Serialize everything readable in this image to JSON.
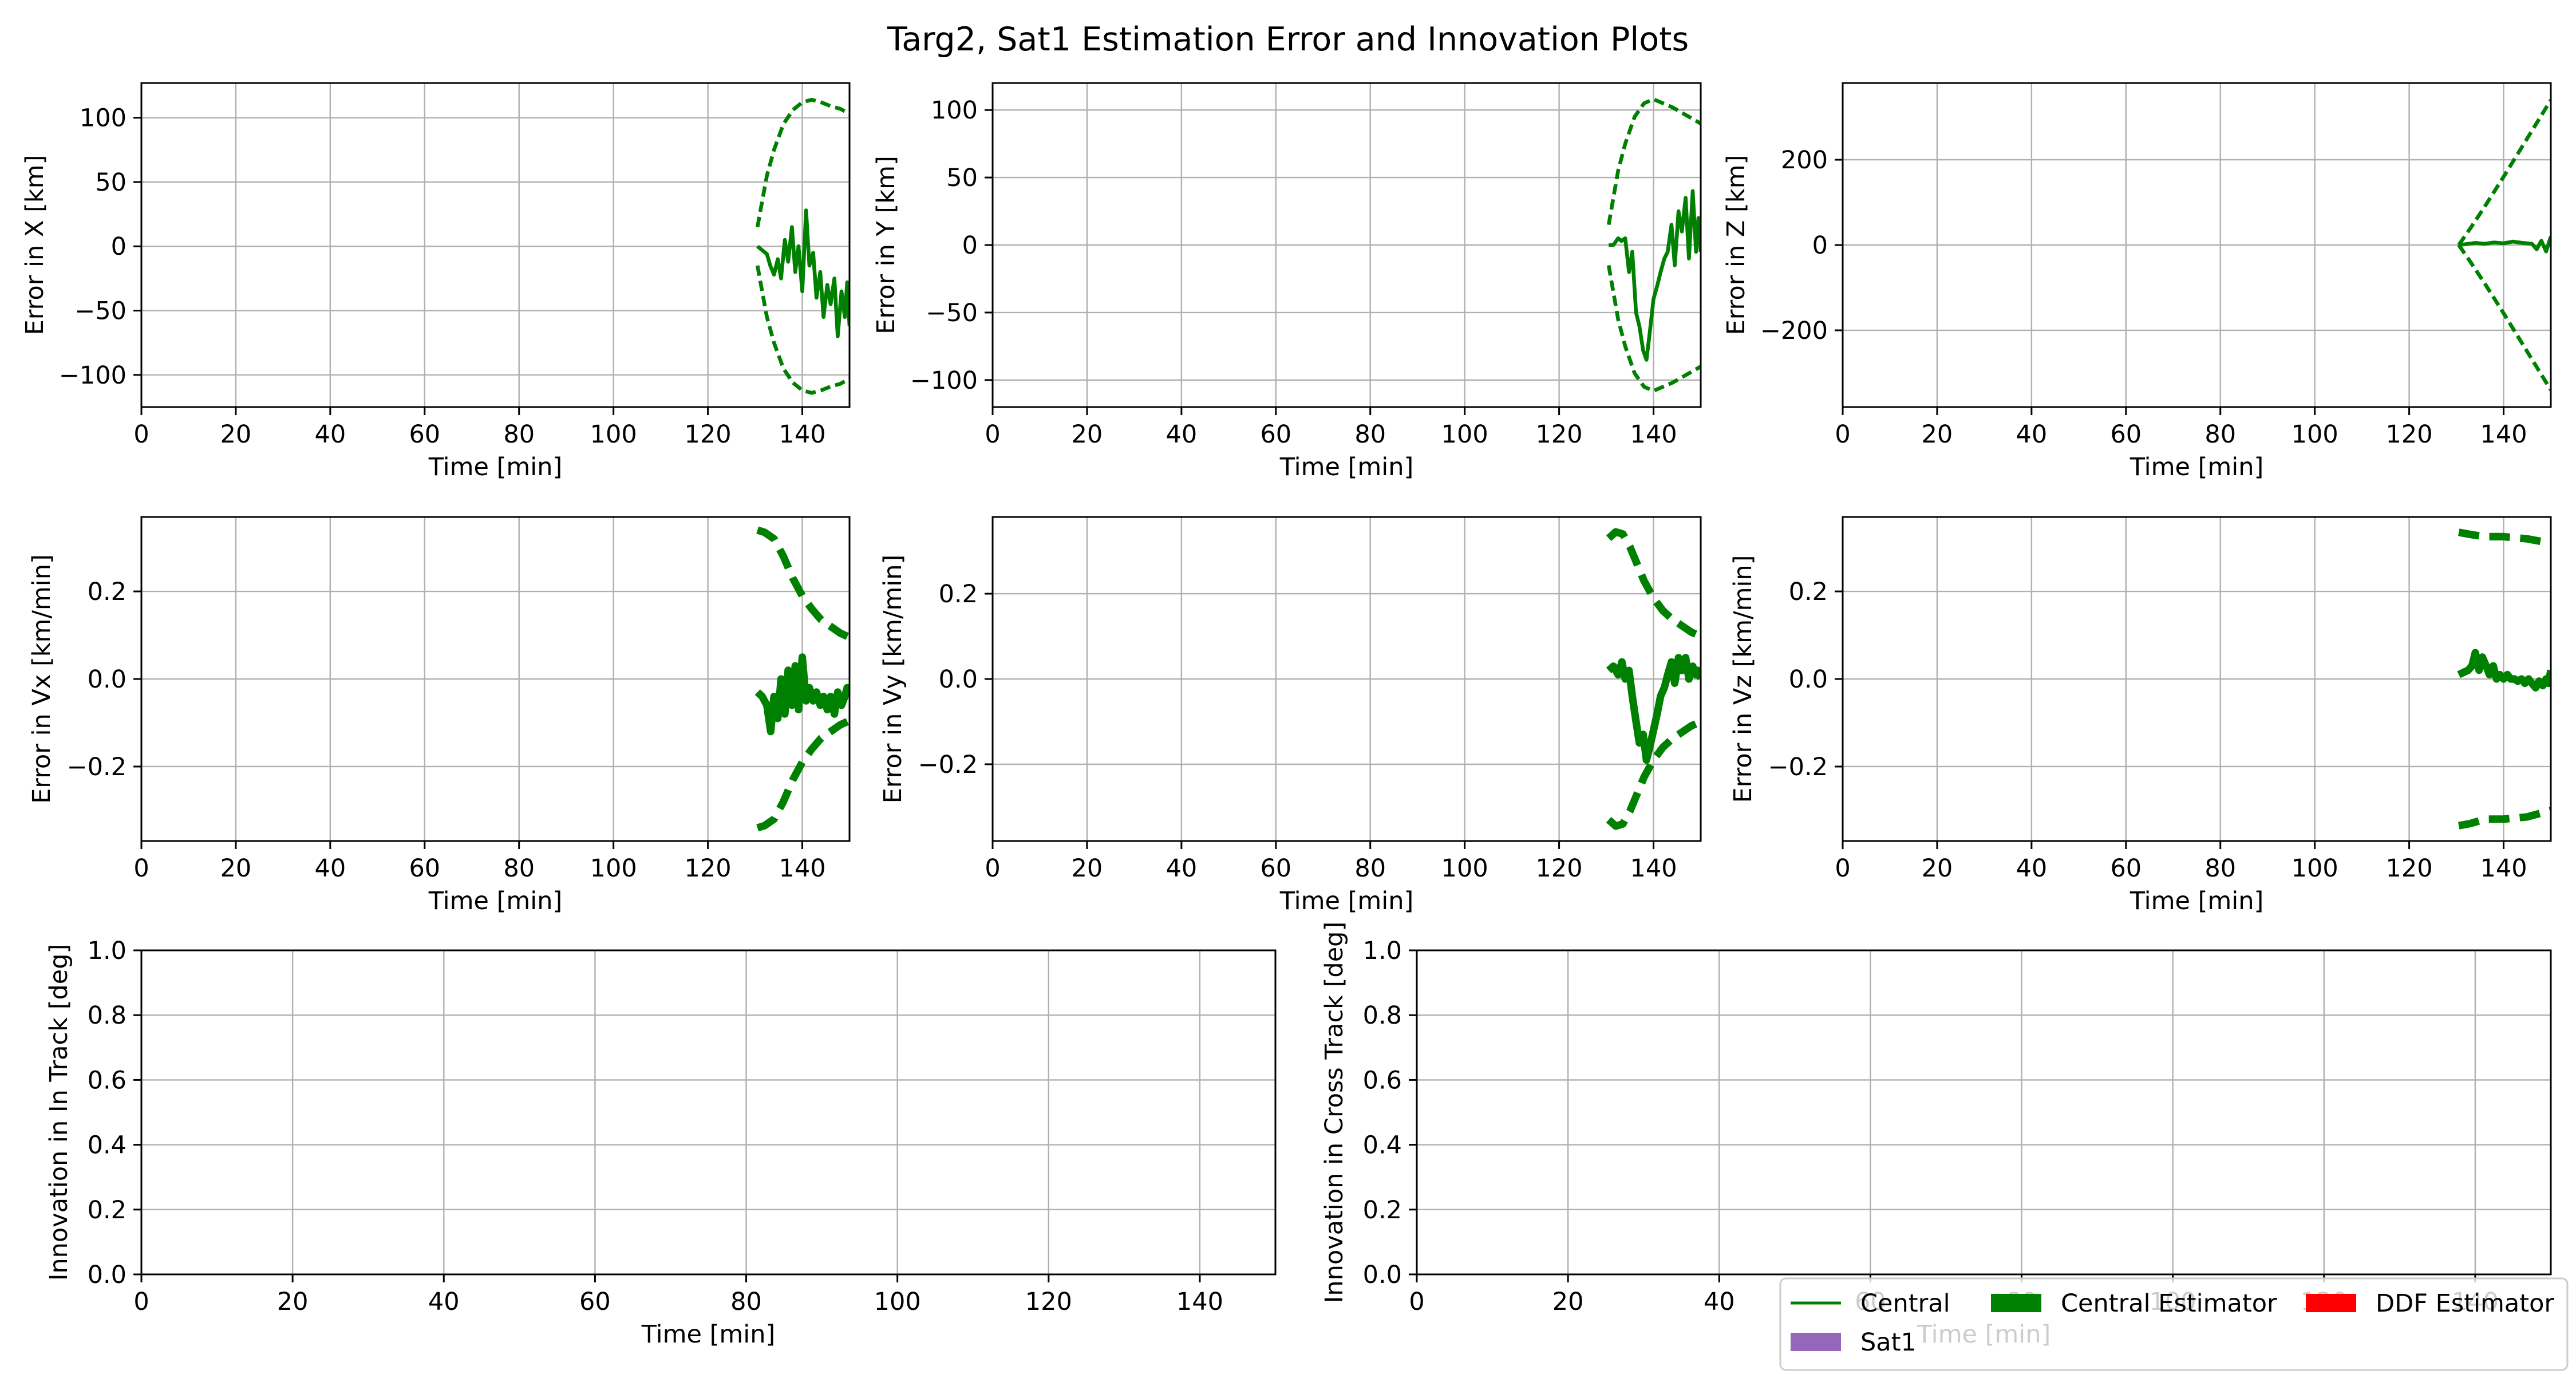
{
  "figure": {
    "title": "Targ2, Sat1 Estimation Error and Innovation Plots"
  },
  "colors": {
    "central": "#008000",
    "sat1": "#9467bd",
    "ddf": "#ff0000",
    "grid": "#b0b0b0"
  },
  "legend": {
    "placement": "lower-right",
    "entries": [
      {
        "label": "Central",
        "style": "line",
        "color": "#008000"
      },
      {
        "label": "Central Estimator",
        "style": "patch",
        "color": "#008000"
      },
      {
        "label": "DDF Estimator",
        "style": "patch",
        "color": "#ff0000"
      },
      {
        "label": "Sat1",
        "style": "patch",
        "color": "#9467bd"
      }
    ]
  },
  "chart_data": [
    {
      "type": "line",
      "xlabel": "Time [min]",
      "ylabel": "Error in X [km]",
      "xlim": [
        0,
        150
      ],
      "ylim": [
        -125,
        127
      ],
      "xticks": [
        0,
        20,
        40,
        60,
        80,
        100,
        120,
        140
      ],
      "yticks": [
        -100,
        -50,
        0,
        50,
        100
      ],
      "grid": true,
      "series": [
        {
          "role": "error",
          "color": "#008000",
          "dashed": false,
          "width": 3,
          "x": [
            130.5,
            131.5,
            132.5,
            133.2,
            134,
            134.8,
            135.5,
            136.3,
            137,
            137.8,
            138.5,
            139.2,
            140,
            140.8,
            141.5,
            142.3,
            143,
            143.8,
            144.5,
            145.3,
            146,
            146.8,
            147.5,
            148.3,
            149,
            149.5,
            150
          ],
          "y": [
            0,
            -3,
            -6,
            -15,
            -22,
            -10,
            -25,
            5,
            -12,
            15,
            -20,
            0,
            -35,
            28,
            -15,
            -5,
            -40,
            -20,
            -55,
            -30,
            -45,
            -25,
            -70,
            -35,
            -55,
            -28,
            -62
          ]
        },
        {
          "role": "upper-bound",
          "color": "#008000",
          "dashed": true,
          "width": 3,
          "x": [
            130.5,
            131.5,
            132.5,
            134,
            136,
            138,
            140,
            142,
            144,
            146,
            148,
            150
          ],
          "y": [
            15,
            35,
            55,
            75,
            95,
            106,
            112,
            114,
            112,
            109,
            107,
            103
          ]
        },
        {
          "role": "lower-bound",
          "color": "#008000",
          "dashed": true,
          "width": 3,
          "x": [
            130.5,
            131.5,
            132.5,
            134,
            136,
            138,
            140,
            142,
            144,
            146,
            148,
            150
          ],
          "y": [
            -15,
            -35,
            -55,
            -75,
            -95,
            -106,
            -112,
            -114,
            -112,
            -109,
            -107,
            -103
          ]
        }
      ]
    },
    {
      "type": "line",
      "xlabel": "Time [min]",
      "ylabel": "Error in Y [km]",
      "xlim": [
        0,
        150
      ],
      "ylim": [
        -120,
        120
      ],
      "xticks": [
        0,
        20,
        40,
        60,
        80,
        100,
        120,
        140
      ],
      "yticks": [
        -100,
        -50,
        0,
        50,
        100
      ],
      "grid": true,
      "series": [
        {
          "role": "error",
          "color": "#008000",
          "dashed": false,
          "width": 3,
          "x": [
            130.5,
            131.5,
            132.5,
            133.2,
            134,
            134.8,
            135.5,
            136.3,
            137,
            137.8,
            138.5,
            139.2,
            140,
            140.8,
            141.5,
            142.3,
            143,
            143.8,
            144.5,
            145.3,
            146,
            146.8,
            147.5,
            148.3,
            149,
            149.5,
            150
          ],
          "y": [
            0,
            0,
            5,
            3,
            5,
            -20,
            -5,
            -50,
            -60,
            -78,
            -85,
            -65,
            -40,
            -30,
            -20,
            -10,
            -5,
            15,
            -15,
            25,
            10,
            35,
            -10,
            40,
            -5,
            20,
            -5
          ]
        },
        {
          "role": "upper-bound",
          "color": "#008000",
          "dashed": true,
          "width": 3,
          "x": [
            130.5,
            131.5,
            132.5,
            134,
            136,
            138,
            140,
            142,
            144,
            146,
            148,
            150
          ],
          "y": [
            15,
            35,
            55,
            75,
            95,
            105,
            108,
            105,
            102,
            98,
            94,
            90
          ]
        },
        {
          "role": "lower-bound",
          "color": "#008000",
          "dashed": true,
          "width": 3,
          "x": [
            130.5,
            131.5,
            132.5,
            134,
            136,
            138,
            140,
            142,
            144,
            146,
            148,
            150
          ],
          "y": [
            -15,
            -35,
            -55,
            -75,
            -95,
            -105,
            -108,
            -105,
            -102,
            -98,
            -94,
            -90
          ]
        }
      ]
    },
    {
      "type": "line",
      "xlabel": "Time [min]",
      "ylabel": "Error in Z [km]",
      "xlim": [
        0,
        150
      ],
      "ylim": [
        -380,
        380
      ],
      "xticks": [
        0,
        20,
        40,
        60,
        80,
        100,
        120,
        140
      ],
      "yticks": [
        -200,
        0,
        200
      ],
      "grid": true,
      "series": [
        {
          "role": "error",
          "color": "#008000",
          "dashed": false,
          "width": 3,
          "x": [
            130.5,
            132,
            134,
            136,
            138,
            140,
            142,
            144,
            146,
            147,
            148,
            149,
            150
          ],
          "y": [
            0,
            2,
            5,
            3,
            6,
            4,
            8,
            5,
            3,
            -10,
            10,
            -15,
            20
          ]
        },
        {
          "role": "upper-bound",
          "color": "#008000",
          "dashed": true,
          "width": 3,
          "x": [
            130.5,
            133,
            136,
            140,
            145,
            150
          ],
          "y": [
            0,
            40,
            90,
            160,
            250,
            340
          ]
        },
        {
          "role": "lower-bound",
          "color": "#008000",
          "dashed": true,
          "width": 3,
          "x": [
            130.5,
            133,
            136,
            140,
            145,
            150
          ],
          "y": [
            0,
            -40,
            -90,
            -160,
            -250,
            -340
          ]
        }
      ]
    },
    {
      "type": "line",
      "xlabel": "Time [min]",
      "ylabel": "Error in Vx [km/min]",
      "xlim": [
        0,
        150
      ],
      "ylim": [
        -0.37,
        0.37
      ],
      "xticks": [
        0,
        20,
        40,
        60,
        80,
        100,
        120,
        140
      ],
      "yticks": [
        -0.2,
        0.0,
        0.2
      ],
      "grid": true,
      "series": [
        {
          "role": "error",
          "color": "#008000",
          "dashed": false,
          "width": 6,
          "x": [
            130.5,
            131.5,
            132.5,
            133.3,
            134,
            134.8,
            135.5,
            136.3,
            137,
            137.8,
            138.5,
            139.2,
            140,
            140.8,
            141.5,
            142.3,
            143,
            143.8,
            144.5,
            145.3,
            146,
            146.8,
            147.5,
            148.3,
            149,
            149.5,
            150
          ],
          "y": [
            -0.03,
            -0.04,
            -0.06,
            -0.12,
            -0.04,
            -0.09,
            0.0,
            -0.08,
            0.02,
            -0.06,
            0.03,
            -0.07,
            0.05,
            -0.05,
            -0.02,
            -0.05,
            -0.03,
            -0.06,
            -0.04,
            -0.07,
            -0.04,
            -0.08,
            -0.03,
            -0.06,
            -0.04,
            -0.02,
            -0.03
          ]
        },
        {
          "role": "upper-bound",
          "color": "#008000",
          "dashed": true,
          "width": 6,
          "x": [
            130.5,
            132,
            134,
            136,
            138,
            140,
            142,
            144,
            146,
            148,
            150
          ],
          "y": [
            0.34,
            0.335,
            0.32,
            0.28,
            0.23,
            0.19,
            0.16,
            0.135,
            0.12,
            0.105,
            0.095
          ]
        },
        {
          "role": "lower-bound",
          "color": "#008000",
          "dashed": true,
          "width": 6,
          "x": [
            130.5,
            132,
            134,
            136,
            138,
            140,
            142,
            144,
            146,
            148,
            150
          ],
          "y": [
            -0.34,
            -0.335,
            -0.32,
            -0.28,
            -0.23,
            -0.19,
            -0.16,
            -0.135,
            -0.12,
            -0.105,
            -0.095
          ]
        }
      ]
    },
    {
      "type": "line",
      "xlabel": "Time [min]",
      "ylabel": "Error in Vy [km/min]",
      "xlim": [
        0,
        150
      ],
      "ylim": [
        -0.38,
        0.38
      ],
      "xticks": [
        0,
        20,
        40,
        60,
        80,
        100,
        120,
        140
      ],
      "yticks": [
        -0.2,
        0.0,
        0.2
      ],
      "grid": true,
      "series": [
        {
          "role": "error",
          "color": "#008000",
          "dashed": false,
          "width": 6,
          "x": [
            130.5,
            131.5,
            132.5,
            133.3,
            134,
            134.8,
            135.5,
            136.3,
            137,
            137.8,
            138.5,
            139.2,
            140,
            140.8,
            141.5,
            142.3,
            143,
            143.8,
            144.5,
            145.3,
            146,
            146.8,
            147.5,
            148.3,
            149,
            149.5,
            150
          ],
          "y": [
            0.02,
            0.03,
            0.01,
            0.04,
            0.0,
            0.02,
            -0.04,
            -0.1,
            -0.15,
            -0.13,
            -0.19,
            -0.16,
            -0.12,
            -0.08,
            -0.04,
            -0.02,
            0.01,
            0.04,
            -0.01,
            0.05,
            0.02,
            0.05,
            0.0,
            0.03,
            0.01,
            0.02,
            0.0
          ]
        },
        {
          "role": "upper-bound",
          "color": "#008000",
          "dashed": true,
          "width": 6,
          "x": [
            130.5,
            132,
            133.5,
            135,
            136.5,
            138,
            140,
            142,
            144,
            146,
            148,
            150
          ],
          "y": [
            0.33,
            0.345,
            0.34,
            0.31,
            0.27,
            0.23,
            0.19,
            0.16,
            0.14,
            0.125,
            0.11,
            0.1
          ]
        },
        {
          "role": "lower-bound",
          "color": "#008000",
          "dashed": true,
          "width": 6,
          "x": [
            130.5,
            132,
            133.5,
            135,
            136.5,
            138,
            140,
            142,
            144,
            146,
            148,
            150
          ],
          "y": [
            -0.33,
            -0.345,
            -0.34,
            -0.31,
            -0.27,
            -0.23,
            -0.19,
            -0.16,
            -0.14,
            -0.125,
            -0.11,
            -0.1
          ]
        }
      ]
    },
    {
      "type": "line",
      "xlabel": "Time [min]",
      "ylabel": "Error in Vz [km/min]",
      "xlim": [
        0,
        150
      ],
      "ylim": [
        -0.37,
        0.37
      ],
      "xticks": [
        0,
        20,
        40,
        60,
        80,
        100,
        120,
        140
      ],
      "yticks": [
        -0.2,
        0.0,
        0.2
      ],
      "grid": true,
      "series": [
        {
          "role": "error",
          "color": "#008000",
          "dashed": false,
          "width": 6,
          "x": [
            130.5,
            131.5,
            132.5,
            133.3,
            134,
            134.8,
            135.5,
            136.3,
            137,
            137.8,
            138.5,
            139.2,
            140,
            140.8,
            141.5,
            142.3,
            143,
            143.8,
            144.5,
            145.3,
            146,
            146.8,
            147.5,
            148.3,
            149,
            149.5,
            150
          ],
          "y": [
            0.01,
            0.015,
            0.02,
            0.03,
            0.06,
            0.02,
            0.05,
            0.03,
            0.01,
            0.03,
            0.0,
            0.01,
            0.0,
            0.01,
            0.0,
            0.0,
            -0.005,
            0.0,
            -0.01,
            0.0,
            -0.01,
            -0.02,
            -0.005,
            -0.015,
            0.0,
            -0.01,
            0.02
          ]
        },
        {
          "role": "upper-bound",
          "color": "#008000",
          "dashed": true,
          "width": 6,
          "x": [
            130.5,
            133,
            136,
            140,
            145,
            150
          ],
          "y": [
            0.335,
            0.33,
            0.325,
            0.325,
            0.32,
            0.31
          ]
        },
        {
          "role": "lower-bound",
          "color": "#008000",
          "dashed": true,
          "width": 6,
          "x": [
            130.5,
            133,
            136,
            140,
            145,
            150
          ],
          "y": [
            -0.335,
            -0.33,
            -0.32,
            -0.32,
            -0.315,
            -0.3
          ]
        }
      ]
    },
    {
      "type": "line",
      "xlabel": "Time [min]",
      "ylabel": "Innovation in In Track [deg]",
      "xlim": [
        0,
        150
      ],
      "ylim": [
        0,
        1
      ],
      "xticks": [
        0,
        20,
        40,
        60,
        80,
        100,
        120,
        140
      ],
      "yticks": [
        0.0,
        0.2,
        0.4,
        0.6,
        0.8,
        1.0
      ],
      "grid": true,
      "series": []
    },
    {
      "type": "line",
      "xlabel": "Time [min]",
      "ylabel": "Innovation in Cross Track [deg]",
      "xlim": [
        0,
        150
      ],
      "ylim": [
        0,
        1
      ],
      "xticks": [
        0,
        20,
        40,
        60,
        80,
        100,
        120,
        140
      ],
      "yticks": [
        0.0,
        0.2,
        0.4,
        0.6,
        0.8,
        1.0
      ],
      "grid": true,
      "series": []
    }
  ]
}
